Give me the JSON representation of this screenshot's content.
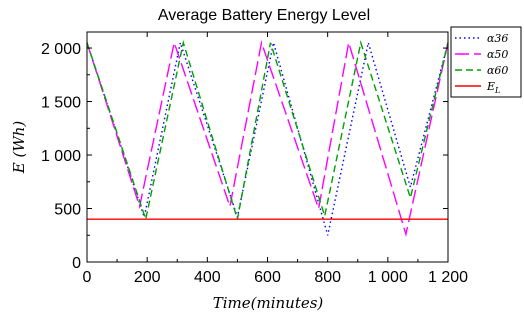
{
  "chart_data": {
    "type": "line",
    "title": "Average Battery Energy Level",
    "xlabel": "Time(minutes)",
    "ylabel": "E (Wh)",
    "xlim": [
      0,
      1200
    ],
    "ylim": [
      0,
      2150
    ],
    "x_ticks": [
      0,
      200,
      400,
      600,
      800,
      1000,
      1200
    ],
    "x_tick_labels": [
      "0",
      "200",
      "400",
      "600",
      "800",
      "1 000",
      "1 200"
    ],
    "y_ticks": [
      0,
      500,
      1000,
      1500,
      2000
    ],
    "y_tick_labels": [
      "0",
      "500",
      "1 000",
      "1 500",
      "2 000"
    ],
    "grid": false,
    "legend_position": "outside-top-right",
    "series": [
      {
        "name": "α36",
        "color": "#0000ff",
        "dash": "dotted",
        "x": [
          0,
          190,
          310,
          500,
          620,
          800,
          935,
          1075,
          1200
        ],
        "y": [
          2050,
          420,
          2050,
          420,
          2050,
          250,
          2050,
          700,
          2050
        ]
      },
      {
        "name": "α50",
        "color": "#ff00ff",
        "dash": "longdash",
        "x": [
          0,
          175,
          290,
          475,
          580,
          770,
          870,
          1060,
          1200
        ],
        "y": [
          2050,
          520,
          2050,
          520,
          2050,
          500,
          2050,
          260,
          2050
        ]
      },
      {
        "name": "α60",
        "color": "#00a000",
        "dash": "dashed",
        "x": [
          0,
          195,
          320,
          500,
          610,
          790,
          910,
          1075,
          1200
        ],
        "y": [
          2050,
          400,
          2050,
          400,
          2050,
          430,
          2050,
          600,
          2050
        ]
      },
      {
        "name": "E_L",
        "color": "#ff0000",
        "dash": "solid",
        "x": [
          0,
          1200
        ],
        "y": [
          400,
          400
        ]
      }
    ],
    "legend": [
      {
        "label": "α36",
        "sub": ""
      },
      {
        "label": "α50",
        "sub": ""
      },
      {
        "label": "α60",
        "sub": ""
      },
      {
        "label": "E",
        "sub": "L"
      }
    ]
  }
}
